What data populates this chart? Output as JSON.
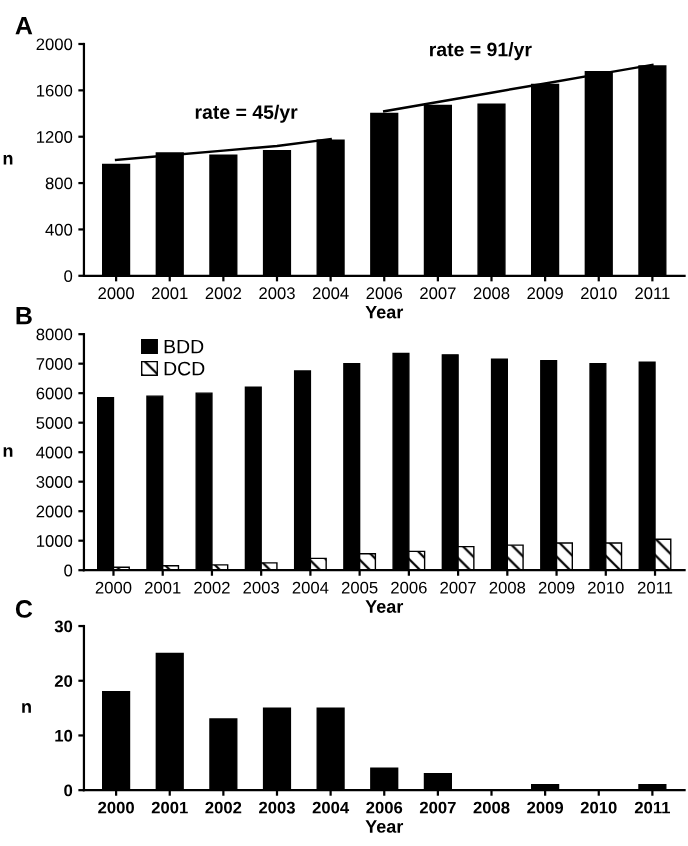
{
  "chart_data": [
    {
      "type": "bar",
      "title": "A",
      "xlabel": "Year",
      "ylabel": "n",
      "categories": [
        "2000",
        "2001",
        "2002",
        "2003",
        "2004",
        "2006",
        "2007",
        "2008",
        "2009",
        "2010",
        "2011"
      ],
      "ylim": [
        0,
        2000
      ],
      "yticks": [
        0,
        400,
        800,
        1200,
        1600,
        2000
      ],
      "grid": false,
      "legend": false,
      "series": [
        {
          "color": "#000000",
          "values": [
            960,
            1060,
            1040,
            1080,
            1170,
            1400,
            1470,
            1480,
            1650,
            1760,
            1810
          ]
        },
        {
          "type": "line",
          "color": "#000000",
          "values": [
            1000,
            1040,
            1080,
            1120,
            1180,
            null,
            null,
            null,
            null,
            null,
            null
          ]
        },
        {
          "type": "line",
          "color": "#000000",
          "values": [
            null,
            null,
            null,
            null,
            null,
            1420,
            1500,
            1580,
            1660,
            1740,
            1820
          ]
        }
      ],
      "annotations": [
        "rate = 45/yr",
        "rate = 91/yr"
      ]
    },
    {
      "type": "bar",
      "title": "B",
      "xlabel": "Year",
      "ylabel": "n",
      "categories": [
        "2000",
        "2001",
        "2002",
        "2003",
        "2004",
        "2005",
        "2006",
        "2007",
        "2008",
        "2009",
        "2010",
        "2011"
      ],
      "ylim": [
        0,
        8000
      ],
      "yticks": [
        0,
        1000,
        2000,
        3000,
        4000,
        5000,
        6000,
        7000,
        8000
      ],
      "grid": false,
      "legend": "top left",
      "series": [
        {
          "name": "BDD",
          "color": "#000000",
          "values": [
            5850,
            5900,
            6000,
            6200,
            6750,
            7000,
            7350,
            7300,
            7150,
            7100,
            7000,
            7050
          ]
        },
        {
          "name": "DCD",
          "color": "#000000",
          "values": [
            100,
            150,
            180,
            250,
            400,
            560,
            640,
            800,
            850,
            920,
            920,
            1050
          ]
        }
      ]
    },
    {
      "type": "bar",
      "title": "C",
      "xlabel": "Year",
      "ylabel": "n",
      "categories": [
        "2000",
        "2001",
        "2002",
        "2003",
        "2004",
        "2006",
        "2007",
        "2008",
        "2009",
        "2010",
        "2011"
      ],
      "ylim": [
        0,
        30
      ],
      "yticks": [
        0,
        10,
        20,
        30
      ],
      "grid": false,
      "legend": false,
      "series": [
        {
          "color": "#000000",
          "values": [
            18,
            25,
            13,
            15,
            15,
            4,
            3,
            0,
            1,
            0,
            1
          ]
        }
      ]
    }
  ]
}
